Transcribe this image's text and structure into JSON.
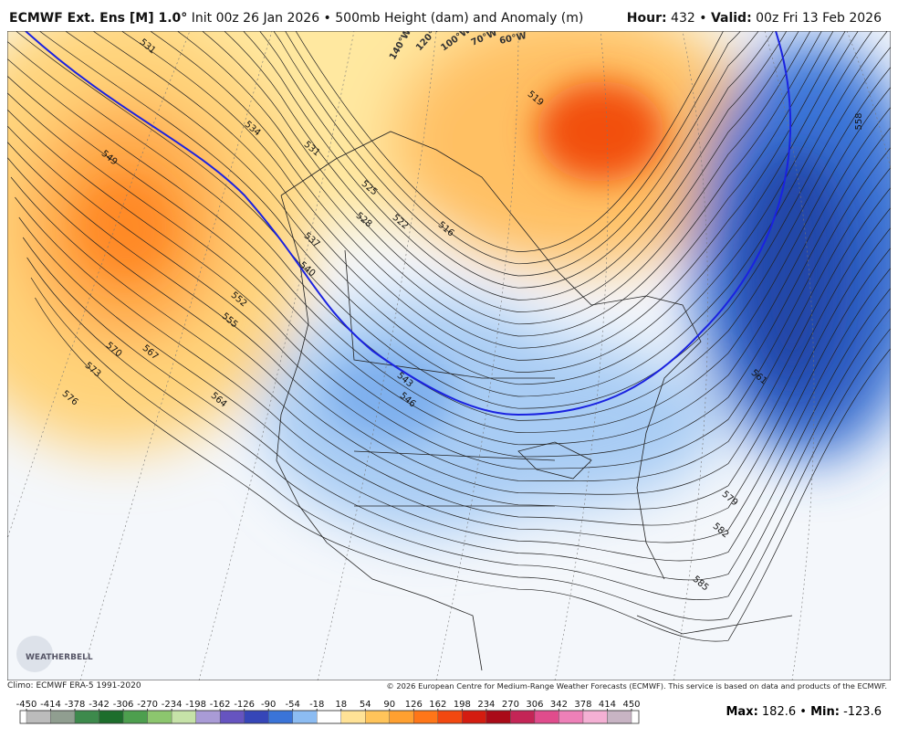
{
  "header": {
    "model": "ECMWF Ext. Ens [M] 1.0°",
    "description": "Init 00z 26 Jan 2026 • 500mb Height (dam) and Anomaly (m)",
    "hour_label": "Hour:",
    "hour": 432,
    "separator": "•",
    "valid_label": "Valid:",
    "valid": "00z Fri 13 Feb 2026"
  },
  "map": {
    "contour_labels": [
      "531",
      "534",
      "531",
      "537",
      "540",
      "549",
      "552",
      "555",
      "570",
      "567",
      "573",
      "576",
      "564",
      "543",
      "546",
      "561",
      "579",
      "582",
      "585",
      "525",
      "528",
      "522",
      "516",
      "519",
      "558"
    ],
    "longitude_labels": [
      "140°W",
      "120°W",
      "100°W",
      "70°W",
      "60°W"
    ],
    "logo": "WEATHERBELL"
  },
  "footer": {
    "climo": "Climo: ECMWF ERA-5 1991-2020",
    "copyright": "© 2026 European Centre for Medium-Range Weather Forecasts (ECMWF). This service is based on data and products of the ECMWF."
  },
  "colorbar": {
    "ticks": [
      -450,
      -414,
      -378,
      -342,
      -306,
      -270,
      -234,
      -198,
      -162,
      -126,
      -90,
      -54,
      -18,
      18,
      54,
      90,
      126,
      162,
      198,
      234,
      270,
      306,
      342,
      378,
      414,
      450
    ],
    "colors": [
      "#bcbcbc",
      "#909e90",
      "#3d8a4c",
      "#1d6e2c",
      "#4d9f4e",
      "#8cc66e",
      "#c6e2a8",
      "#a99bd6",
      "#6654c0",
      "#3646b8",
      "#3a74d8",
      "#8cbcf2",
      "#ffffff",
      "#ffe296",
      "#ffc45a",
      "#ffa030",
      "#ff7618",
      "#f24810",
      "#d41c10",
      "#aa0a18",
      "#c42556",
      "#e04c8c",
      "#ee80b8",
      "#f4b0d4",
      "#c8b4c4"
    ]
  },
  "stats": {
    "max_label": "Max:",
    "max": 182.6,
    "separator": "•",
    "min_label": "Min:",
    "min": -123.6
  }
}
